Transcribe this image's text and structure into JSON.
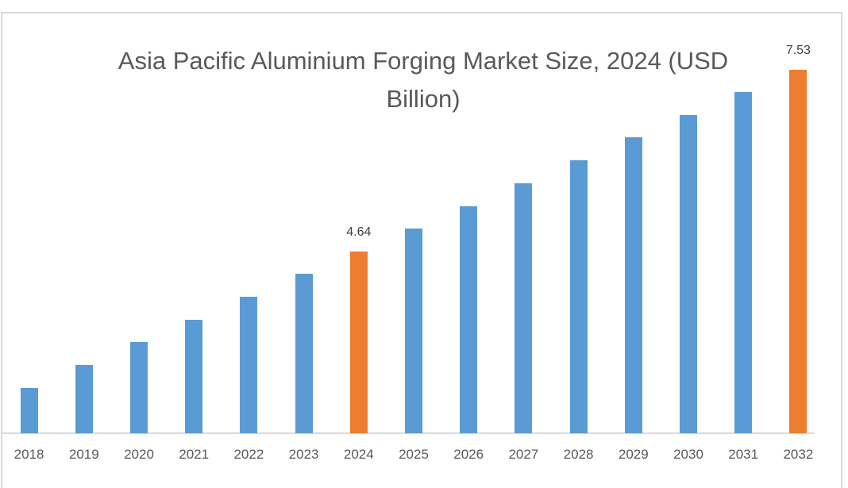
{
  "chart_data": {
    "type": "bar",
    "title": "Asia Pacific Aluminium Forging Market Size, 2024 (USD Billion)",
    "title_lines": [
      "Asia Pacific Aluminium Forging Market Size, 2024 (USD",
      "Billion)"
    ],
    "xlabel": "",
    "ylabel": "",
    "categories": [
      "2018",
      "2019",
      "2020",
      "2021",
      "2022",
      "2023",
      "2024",
      "2025",
      "2026",
      "2027",
      "2028",
      "2029",
      "2030",
      "2031",
      "2032"
    ],
    "values": [
      2.47,
      2.84,
      3.2,
      3.55,
      3.92,
      4.29,
      4.64,
      5.01,
      5.36,
      5.73,
      6.09,
      6.46,
      6.81,
      7.18,
      7.53
    ],
    "highlighted": [
      "2024",
      "2032"
    ],
    "data_labels": {
      "2024": "4.64",
      "2032": "7.53"
    },
    "colors": {
      "default": "#5B9BD5",
      "highlight": "#ED7D31"
    },
    "ylim": [
      1.75,
      8.0
    ],
    "grid": false,
    "legend": "none"
  }
}
